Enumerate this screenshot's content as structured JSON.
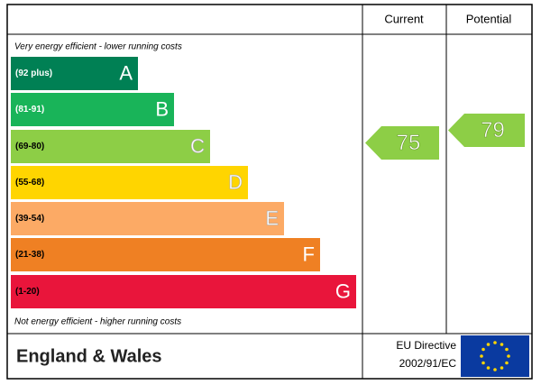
{
  "header": {
    "current": "Current",
    "potential": "Potential"
  },
  "top_note": "Very energy efficient - lower running costs",
  "bands": [
    {
      "range": "(92 plus)",
      "letter": "A",
      "color": "#008054"
    },
    {
      "range": "(81-91)",
      "letter": "B",
      "color": "#19b459"
    },
    {
      "range": "(69-80)",
      "letter": "C",
      "color": "#8dce46"
    },
    {
      "range": "(55-68)",
      "letter": "D",
      "color": "#ffd500"
    },
    {
      "range": "(39-54)",
      "letter": "E",
      "color": "#fcaa65"
    },
    {
      "range": "(21-38)",
      "letter": "F",
      "color": "#ef8023"
    },
    {
      "range": "(1-20)",
      "letter": "G",
      "color": "#e9153b"
    }
  ],
  "bottom_note": "Not energy efficient - higher running costs",
  "current": {
    "value": 75,
    "color": "#8dce46"
  },
  "potential": {
    "value": 79,
    "color": "#8dce46"
  },
  "footer": {
    "region": "England & Wales",
    "directive": [
      "EU Directive",
      "2002/91/EC"
    ]
  }
}
